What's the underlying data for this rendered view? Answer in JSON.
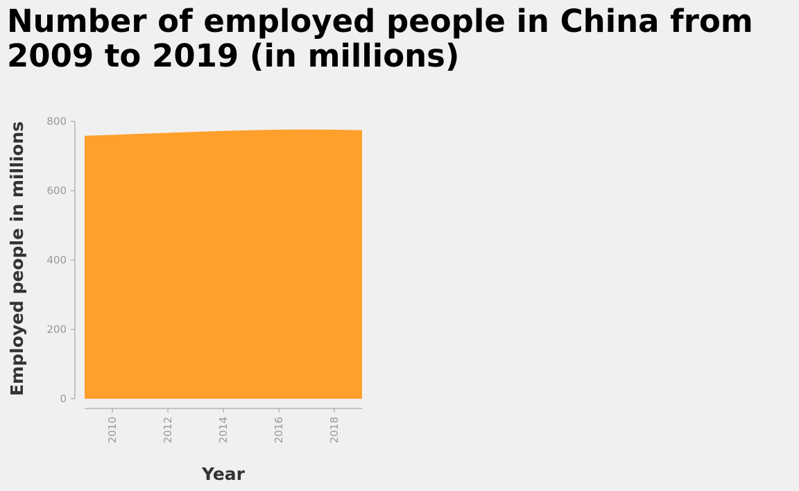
{
  "chart_data": {
    "type": "area",
    "title": "Number of employed people in China from 2009 to 2019 (in millions)",
    "xlabel": "Year",
    "ylabel": "Employed people in millions",
    "x": [
      2009,
      2010,
      2011,
      2012,
      2013,
      2014,
      2015,
      2016,
      2017,
      2018,
      2019
    ],
    "series": [
      {
        "values": [
          758.3,
          761.1,
          764.2,
          767.0,
          769.8,
          772.5,
          774.5,
          776.0,
          776.4,
          775.9,
          774.7
        ]
      }
    ],
    "xticks": [
      2010,
      2012,
      2014,
      2016,
      2018
    ],
    "yticks": [
      0,
      200,
      400,
      600,
      800
    ],
    "xlim": [
      2009,
      2019
    ],
    "ylim": [
      0,
      800
    ],
    "grid": false,
    "fill_color": "#ff9f2c",
    "axis_color": "#999999"
  }
}
